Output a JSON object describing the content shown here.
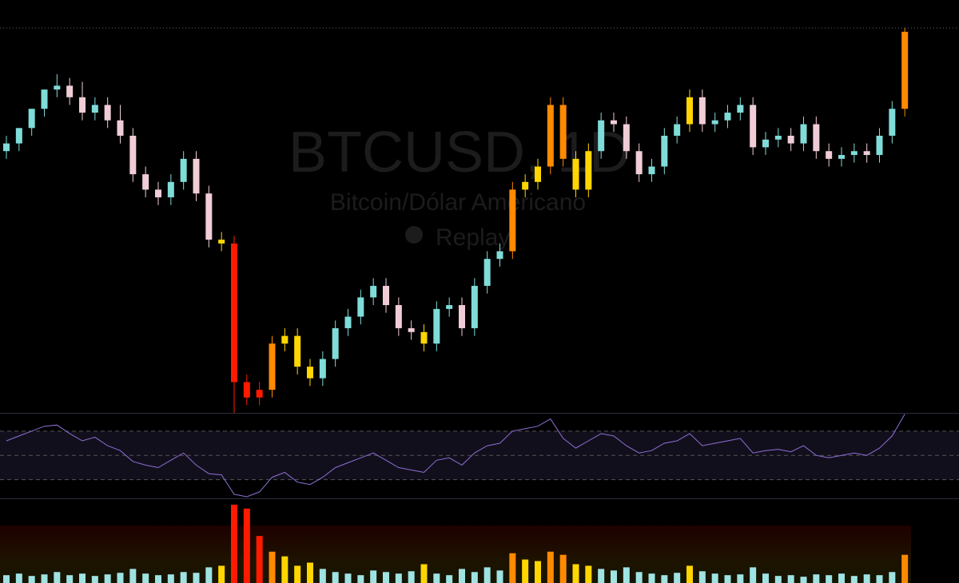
{
  "watermark": {
    "symbol": "BTCUSD, 1D",
    "description": "Bitcoin/Dólar Americano",
    "replay": "Replay"
  },
  "chart_data": {
    "type": "candlestick",
    "open": [
      68,
      70,
      74,
      79,
      84,
      85,
      82,
      78,
      80,
      76,
      72,
      62,
      58,
      56,
      60,
      66,
      57,
      45,
      44,
      8,
      4,
      6,
      18,
      20,
      12,
      9,
      14,
      22,
      25,
      30,
      33,
      28,
      22,
      21,
      18,
      27,
      28,
      22,
      33,
      40,
      42,
      58,
      60,
      64,
      80,
      66,
      58,
      68,
      76,
      75,
      68,
      62,
      64,
      72,
      75,
      82,
      75,
      76,
      78,
      80,
      69,
      71,
      72,
      70,
      75,
      68,
      66,
      67,
      68,
      67,
      72,
      79
    ],
    "high": [
      72,
      74,
      78,
      83,
      88,
      87,
      86,
      82,
      82,
      80,
      74,
      64,
      60,
      62,
      68,
      68,
      59,
      47,
      46,
      10,
      8,
      20,
      22,
      22,
      14,
      16,
      24,
      27,
      32,
      35,
      35,
      30,
      24,
      23,
      29,
      30,
      30,
      35,
      42,
      44,
      60,
      62,
      66,
      82,
      82,
      68,
      70,
      78,
      78,
      77,
      70,
      66,
      74,
      77,
      84,
      84,
      78,
      80,
      82,
      82,
      73,
      74,
      74,
      77,
      77,
      70,
      69,
      70,
      70,
      74,
      81,
      100
    ],
    "low": [
      66,
      68,
      72,
      77,
      82,
      80,
      76,
      76,
      74,
      70,
      60,
      56,
      54,
      54,
      58,
      55,
      43,
      42,
      0,
      2,
      2,
      4,
      16,
      10,
      7,
      7,
      12,
      20,
      23,
      28,
      26,
      20,
      19,
      16,
      16,
      25,
      20,
      20,
      31,
      38,
      40,
      56,
      58,
      62,
      64,
      56,
      56,
      66,
      73,
      66,
      60,
      60,
      62,
      70,
      73,
      73,
      73,
      74,
      76,
      67,
      67,
      69,
      68,
      68,
      66,
      64,
      64,
      65,
      65,
      65,
      70,
      77
    ],
    "close": [
      70,
      74,
      79,
      84,
      85,
      82,
      78,
      80,
      76,
      72,
      62,
      58,
      56,
      60,
      66,
      57,
      45,
      44,
      8,
      4,
      6,
      18,
      20,
      12,
      9,
      14,
      22,
      25,
      30,
      33,
      28,
      22,
      21,
      18,
      27,
      28,
      22,
      33,
      40,
      42,
      58,
      60,
      64,
      80,
      66,
      58,
      68,
      76,
      75,
      68,
      62,
      64,
      72,
      75,
      82,
      75,
      76,
      78,
      80,
      69,
      71,
      72,
      70,
      75,
      68,
      66,
      67,
      68,
      67,
      72,
      79,
      99
    ],
    "ylim": [
      0,
      100
    ],
    "up_color": "#7fdcd8",
    "down_color": "#f0cdd6",
    "volume": {
      "values": [
        10,
        12,
        9,
        11,
        14,
        10,
        12,
        9,
        11,
        13,
        18,
        12,
        10,
        11,
        14,
        13,
        20,
        22,
        100,
        95,
        60,
        40,
        34,
        22,
        26,
        18,
        14,
        12,
        10,
        16,
        14,
        12,
        15,
        24,
        12,
        10,
        18,
        14,
        20,
        16,
        38,
        30,
        28,
        40,
        36,
        24,
        22,
        18,
        16,
        20,
        14,
        12,
        10,
        13,
        22,
        15,
        12,
        10,
        11,
        20,
        12,
        9,
        10,
        8,
        11,
        10,
        12,
        9,
        11,
        10,
        14,
        36
      ],
      "ylim": [
        0,
        105
      ],
      "palette": [
        "#9fe3e3",
        "#ffd600",
        "#ff8a00",
        "#ff1a00"
      ]
    },
    "rsi": {
      "values": [
        62,
        66,
        70,
        74,
        75,
        68,
        62,
        65,
        58,
        54,
        45,
        42,
        40,
        46,
        52,
        42,
        35,
        34,
        18,
        16,
        20,
        32,
        36,
        28,
        26,
        32,
        40,
        44,
        48,
        52,
        46,
        40,
        38,
        36,
        46,
        48,
        42,
        52,
        58,
        60,
        70,
        72,
        74,
        80,
        64,
        56,
        62,
        68,
        66,
        58,
        52,
        54,
        60,
        62,
        68,
        58,
        60,
        62,
        64,
        52,
        54,
        55,
        53,
        58,
        50,
        48,
        50,
        52,
        50,
        56,
        66,
        84
      ],
      "ylim": [
        14,
        85
      ],
      "yticks": [
        30,
        50,
        70
      ],
      "color": "#8e6fd6"
    }
  }
}
